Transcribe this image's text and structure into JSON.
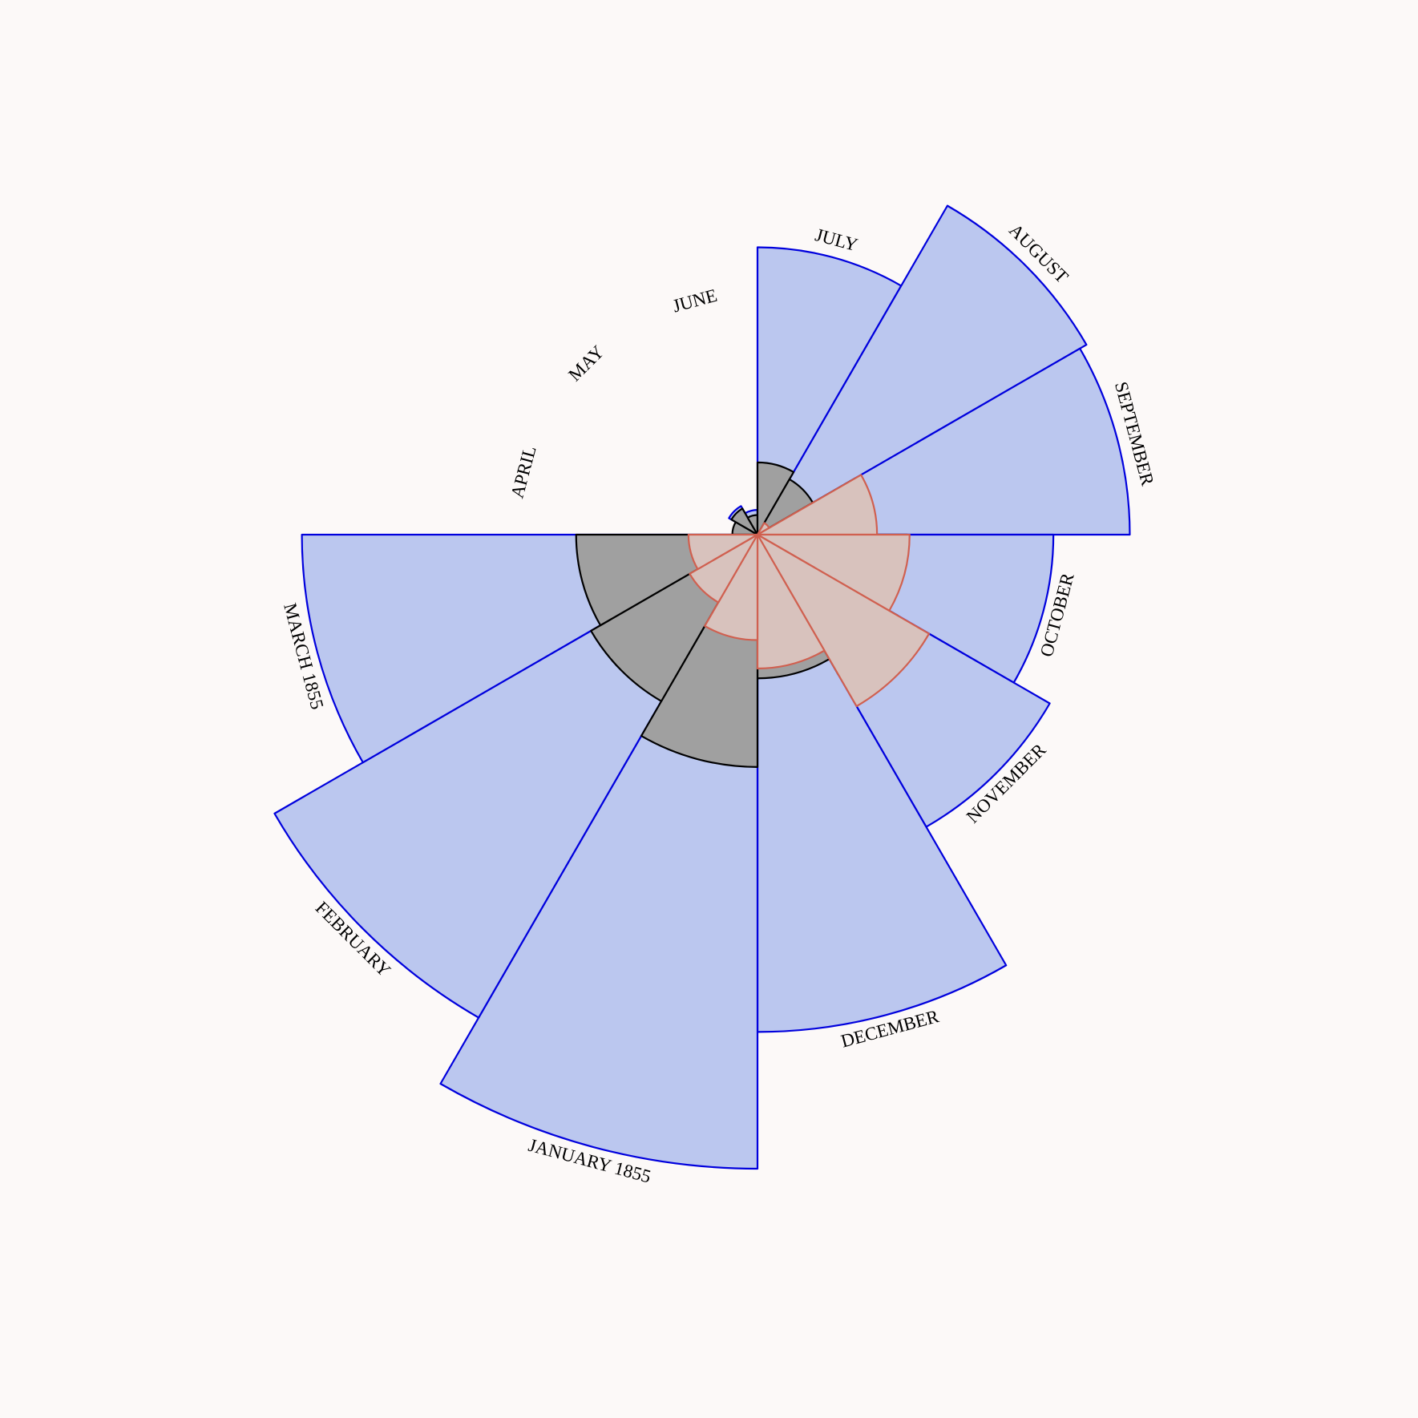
{
  "chart_data": {
    "type": "polar-area",
    "title": "",
    "center_rotation_note": "",
    "colors": {
      "background": "#fcf9f8",
      "disease_fill": "#bbc7ef",
      "disease_stroke": "#0000dd",
      "other_fill": "#a0a0a0",
      "other_stroke": "#000000",
      "wounds_fill": "#d8c2bd",
      "wounds_stroke": "#d06050"
    },
    "series_order": [
      "disease",
      "other",
      "wounds"
    ],
    "months": [
      {
        "label": "APRIL",
        "disease": 0.5,
        "other": 2.8,
        "wounds": 0
      },
      {
        "label": "MAY",
        "disease": 4.8,
        "other": 4.0,
        "wounds": 0
      },
      {
        "label": "JUNE",
        "disease": 2.7,
        "other": 1.7,
        "wounds": 0
      },
      {
        "label": "JULY",
        "disease": 364,
        "other": 23,
        "wounds": 0
      },
      {
        "label": "AUGUST",
        "disease": 636,
        "other": 18,
        "wounds": 0.8
      },
      {
        "label": "SEPTEMBER",
        "disease": 611,
        "other": 56,
        "wounds": 63
      },
      {
        "label": "OCTOBER",
        "disease": 386,
        "other": 99,
        "wounds": 102
      },
      {
        "label": "NOVEMBER",
        "disease": 502,
        "other": 115,
        "wounds": 173
      },
      {
        "label": "DECEMBER",
        "disease": 1090,
        "other": 91,
        "wounds": 79
      },
      {
        "label": "JANUARY 1855",
        "disease": 1772,
        "other": 238,
        "wounds": 49
      },
      {
        "label": "FEBRUARY",
        "disease": 1371,
        "other": 163,
        "wounds": 27
      },
      {
        "label": "MARCH 1855",
        "disease": 915,
        "other": 145,
        "wounds": 21
      }
    ]
  }
}
